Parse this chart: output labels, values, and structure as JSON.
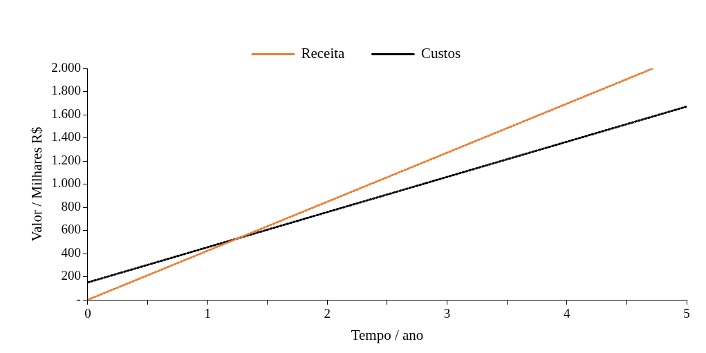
{
  "chart_data": {
    "type": "line",
    "xlabel": "Tempo / ano",
    "ylabel": "Valor / Milhares R$",
    "series": [
      {
        "name": "Receita",
        "color": "#ed7d31",
        "x": [
          0,
          4.72
        ],
        "values": [
          0,
          2000
        ]
      },
      {
        "name": "Custos",
        "color": "#000000",
        "x": [
          0,
          5
        ],
        "values": [
          150,
          1670
        ]
      }
    ],
    "xlim": [
      0,
      5
    ],
    "xticks": [
      0,
      {
        "value": 0.5,
        "label": null
      },
      1,
      {
        "value": 1.5,
        "label": null
      },
      2,
      {
        "value": 2.5,
        "label": null
      },
      3,
      {
        "value": 3.5,
        "label": null
      },
      4,
      {
        "value": 4.5,
        "label": null
      },
      5
    ],
    "ylim": [
      0,
      2000
    ],
    "yticks": [
      {
        "value": 0,
        "label": "-"
      },
      200,
      400,
      600,
      800,
      {
        "value": 1000,
        "label": "1.000"
      },
      {
        "value": 1200,
        "label": "1.200"
      },
      {
        "value": 1400,
        "label": "1.400"
      },
      {
        "value": 1600,
        "label": "1.600"
      },
      {
        "value": 1800,
        "label": "1.800"
      },
      {
        "value": 2000,
        "label": "2.000"
      }
    ],
    "grid": false,
    "legend": "top",
    "marker": "none",
    "line_style": "dotted"
  }
}
